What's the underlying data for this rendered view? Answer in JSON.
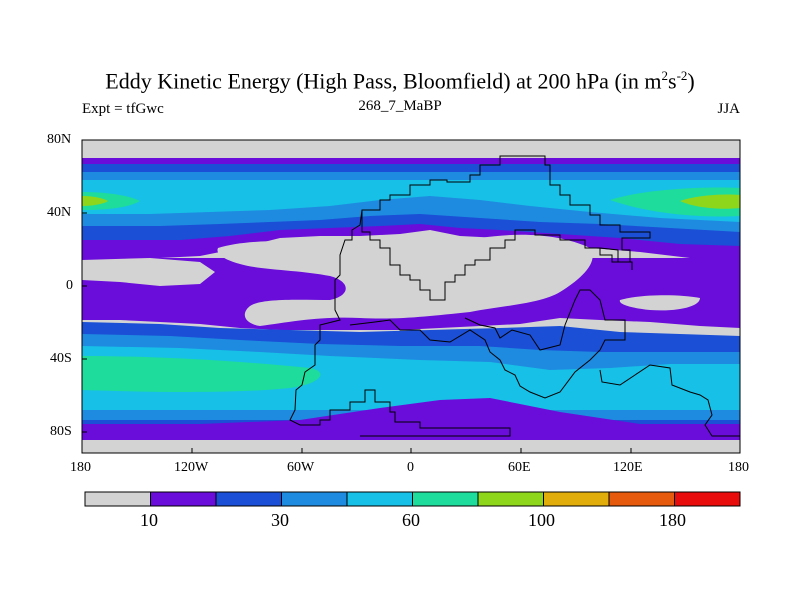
{
  "title": "Eddy Kinetic Energy (High Pass, Bloomfield) at 200 hPa (in m",
  "title_sup1": "2",
  "title_mid": "s",
  "title_sup2": "-2",
  "title_end": ")",
  "left_label": "Expt = tfGwc",
  "center_label": "268_7_MaBP",
  "right_label": "JJA",
  "lat_ticks": [
    "80N",
    "40N",
    "0",
    "40S",
    "80S"
  ],
  "lon_ticks": [
    "180",
    "120W",
    "60W",
    "0",
    "60E",
    "120E",
    "180"
  ],
  "colorbar": {
    "colors": [
      "#d3d3d3",
      "#6a0ddb",
      "#1a4fd6",
      "#1e8be0",
      "#17c0e6",
      "#1edc9c",
      "#8ed61c",
      "#e0ad0a",
      "#e55a0c",
      "#e80c0c"
    ],
    "labels": [
      "10",
      "30",
      "60",
      "100",
      "180"
    ]
  },
  "palette": {
    "gray": "#d3d3d3",
    "purple": "#6a0ddb",
    "blue": "#1a4fd6",
    "midblue": "#1e8be0",
    "cyan": "#17c0e6",
    "green": "#1edc9c",
    "lime": "#8ed61c"
  }
}
